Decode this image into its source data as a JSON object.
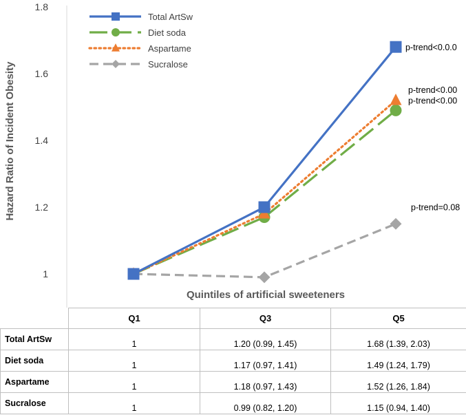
{
  "chart_data": {
    "type": "line",
    "categories": [
      "Q1",
      "Q3",
      "Q5"
    ],
    "series": [
      {
        "name": "Total ArtSw",
        "values": [
          1.0,
          1.2,
          1.68
        ],
        "color": "#4472c4",
        "marker": "square",
        "dash": "solid",
        "annotation": "p-trend<0.0.0"
      },
      {
        "name": "Diet soda",
        "values": [
          1.0,
          1.17,
          1.49
        ],
        "color": "#70ad47",
        "marker": "circle",
        "dash": "long-dash",
        "annotation": "p-trend<0.00"
      },
      {
        "name": "Aspartame",
        "values": [
          1.0,
          1.18,
          1.52
        ],
        "color": "#ed7d31",
        "marker": "triangle",
        "dash": "dotted",
        "annotation": "p-trend<0.00"
      },
      {
        "name": "Sucralose",
        "values": [
          1.0,
          0.99,
          1.15
        ],
        "color": "#a5a5a5",
        "marker": "diamond",
        "dash": "dashed",
        "annotation": "p-trend=0.08"
      }
    ],
    "ylabel": "Hazard Ratio of Incident Obesity",
    "xlabel": "Quintiles of artificial sweeteners",
    "ylim": [
      1,
      1.8
    ],
    "yticks": [
      "1",
      "1.2",
      "1.4",
      "1.6",
      "1.8"
    ],
    "grid": false,
    "legend_position": "top-left"
  },
  "table": {
    "headers": [
      "Q1",
      "Q3",
      "Q5"
    ],
    "rows": [
      {
        "label": "Total ArtSw",
        "cells": [
          "1",
          "1.20 (0.99, 1.45)",
          "1.68 (1.39, 2.03)"
        ]
      },
      {
        "label": "Diet soda",
        "cells": [
          "1",
          "1.17 (0.97, 1.41)",
          "1.49 (1.24, 1.79)"
        ]
      },
      {
        "label": "Aspartame",
        "cells": [
          "1",
          "1.18 (0.97, 1.43)",
          "1.52 (1.26, 1.84)"
        ]
      },
      {
        "label": "Sucralose",
        "cells": [
          "1",
          "0.99 (0.82, 1.20)",
          "1.15 (0.94, 1.40)"
        ]
      }
    ]
  }
}
